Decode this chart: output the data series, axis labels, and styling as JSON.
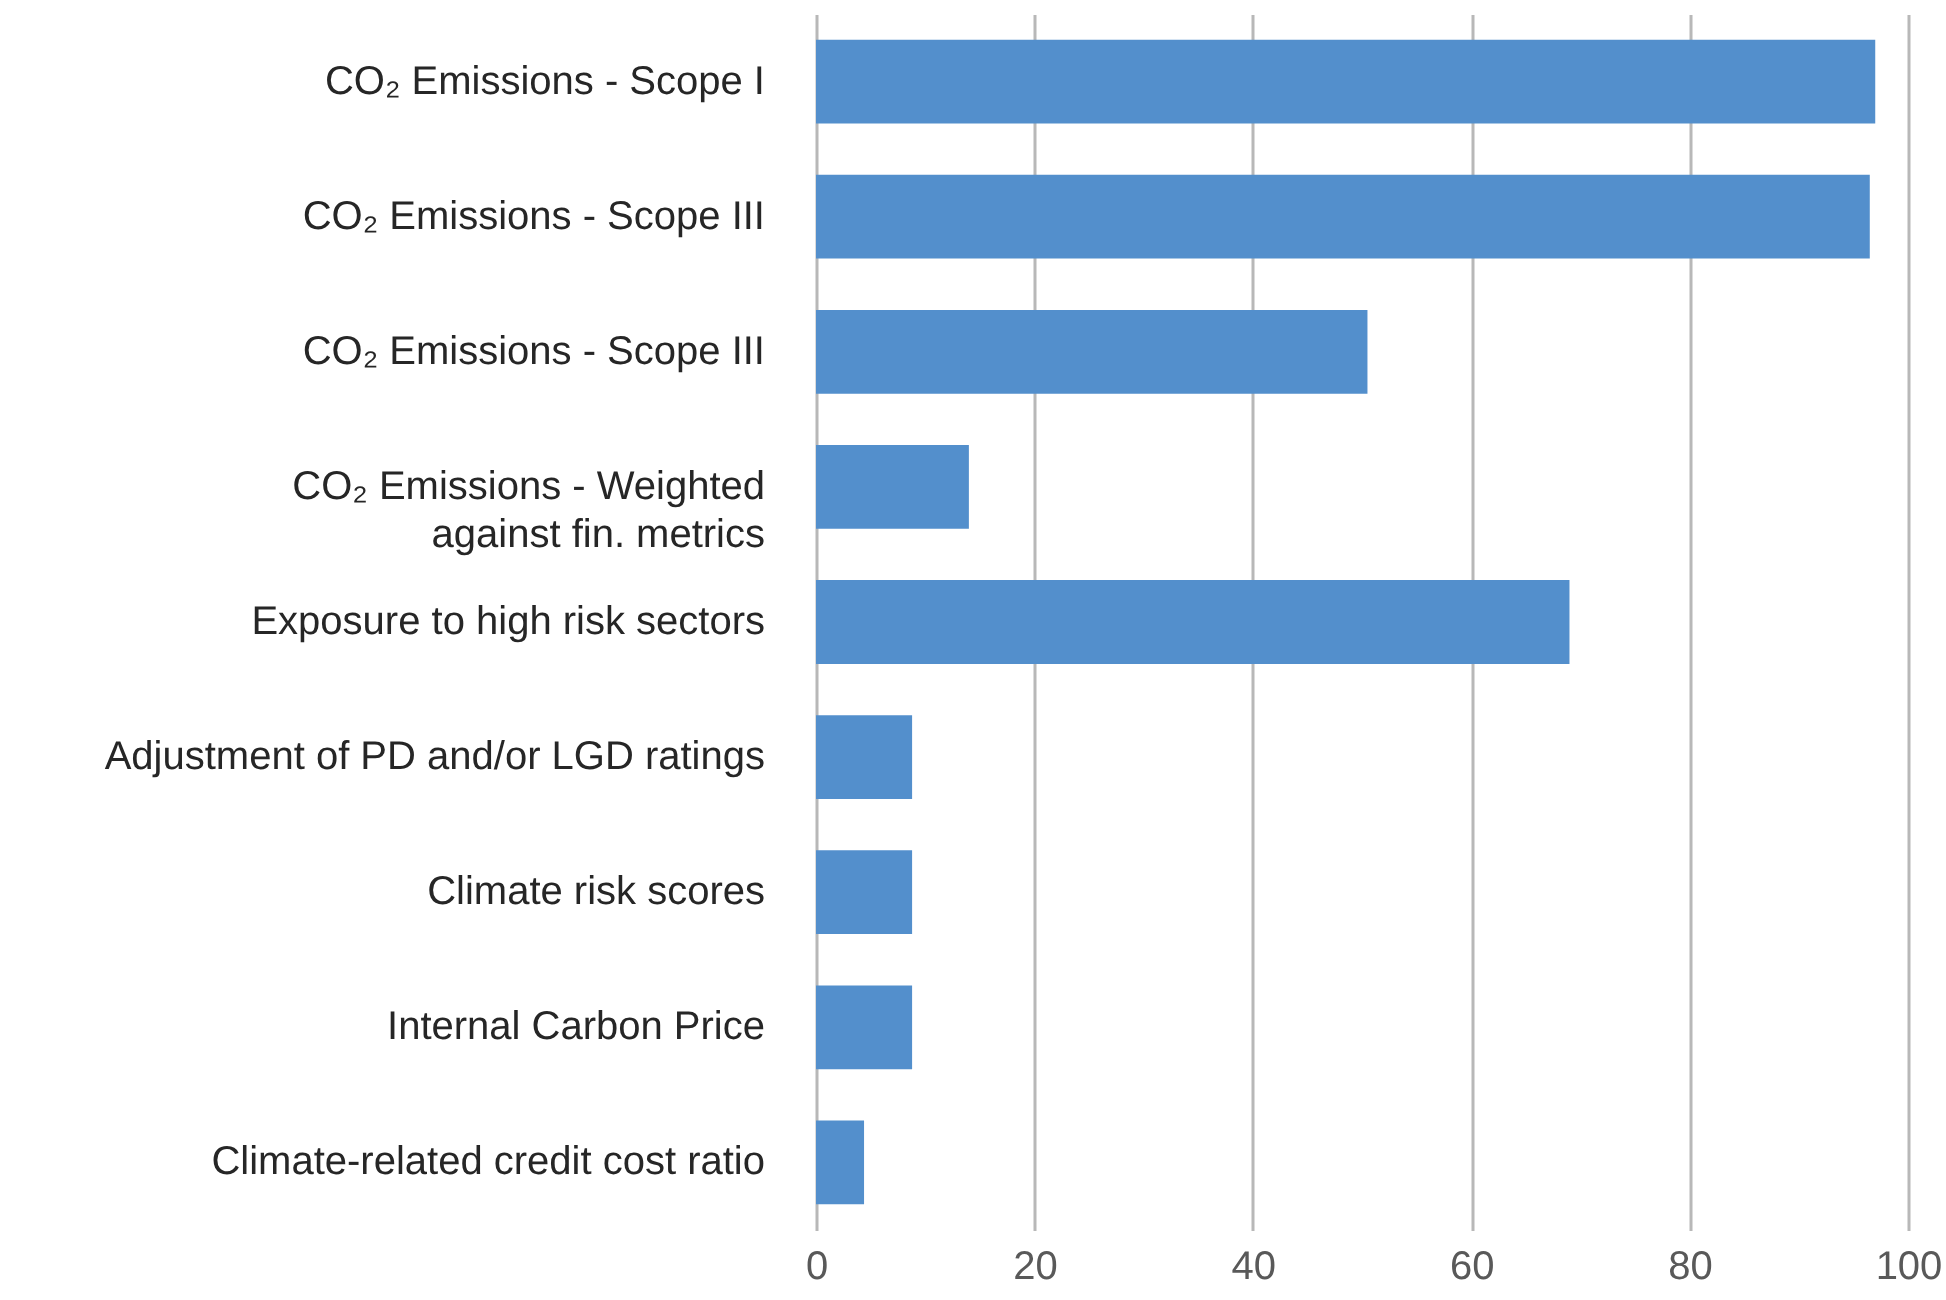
{
  "chart_data": {
    "type": "bar",
    "orientation": "horizontal",
    "categories": [
      "CO₂ Emissions - Scope I",
      "CO₂ Emissions - Scope III",
      "CO₂ Emissions - Scope III",
      "CO₂ Emissions - Weighted against fin. metrics",
      "Exposure to high risk sectors",
      "Adjustment of PD and/or LGD ratings",
      "Climate risk scores",
      "Internal Carbon Price",
      "Climate-related credit cost ratio"
    ],
    "values": [
      97,
      96.5,
      50.5,
      14,
      69,
      8.8,
      8.8,
      8.8,
      4.4
    ],
    "color": "#538fcc",
    "xlim": [
      0,
      100
    ],
    "xticks": [
      0,
      20,
      40,
      60,
      80,
      100
    ],
    "grid": "x"
  }
}
